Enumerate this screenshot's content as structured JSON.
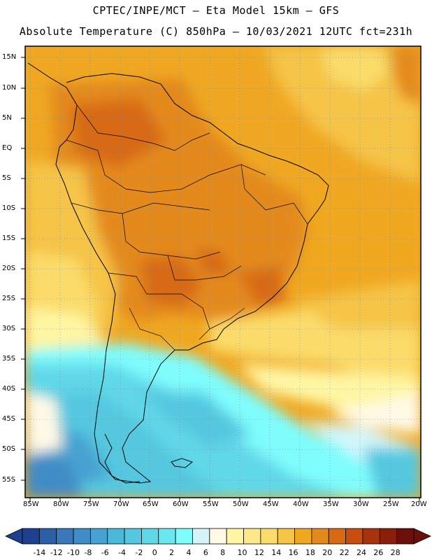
{
  "header": {
    "line1": "CPTEC/INPE/MCT –  Eta Model 15km – GFS",
    "line2": "Absolute Temperature (C) 850hPa – 10/03/2021 12UTC fct=231h"
  },
  "chart_data": {
    "type": "heatmap",
    "title": "Absolute Temperature (C) 850hPa",
    "model": "Eta Model 15km – GFS",
    "source": "CPTEC/INPE/MCT",
    "valid": "10/03/2021 12UTC",
    "forecast": "fct=231h",
    "lat_labels": [
      "15N",
      "10N",
      "5N",
      "EQ",
      "5S",
      "10S",
      "15S",
      "20S",
      "25S",
      "30S",
      "35S",
      "40S",
      "45S",
      "50S",
      "55S"
    ],
    "lon_labels": [
      "85W",
      "80W",
      "75W",
      "70W",
      "65W",
      "60W",
      "55W",
      "50W",
      "45W",
      "40W",
      "35W",
      "30W",
      "25W",
      "20W"
    ],
    "colorbar": {
      "ticks": [
        "-14",
        "-12",
        "-10",
        "-8",
        "-6",
        "-4",
        "-2",
        "0",
        "2",
        "4",
        "6",
        "8",
        "10",
        "12",
        "14",
        "16",
        "18",
        "20",
        "22",
        "24",
        "26",
        "28"
      ],
      "colors": [
        "#1f3f8f",
        "#2b5fa8",
        "#3a78bb",
        "#3f8cc6",
        "#46a3d1",
        "#4bb8d8",
        "#55c8e0",
        "#60d8e8",
        "#6ae8f0",
        "#7ffdfd",
        "#d4f6fb",
        "#fff9e6",
        "#fff6a3",
        "#fde98a",
        "#fbdc6a",
        "#f6c447",
        "#f0a820",
        "#e48a1c",
        "#d86a14",
        "#c84d0f",
        "#a8320c",
        "#8a1e0a",
        "#6a0f0a"
      ]
    }
  }
}
